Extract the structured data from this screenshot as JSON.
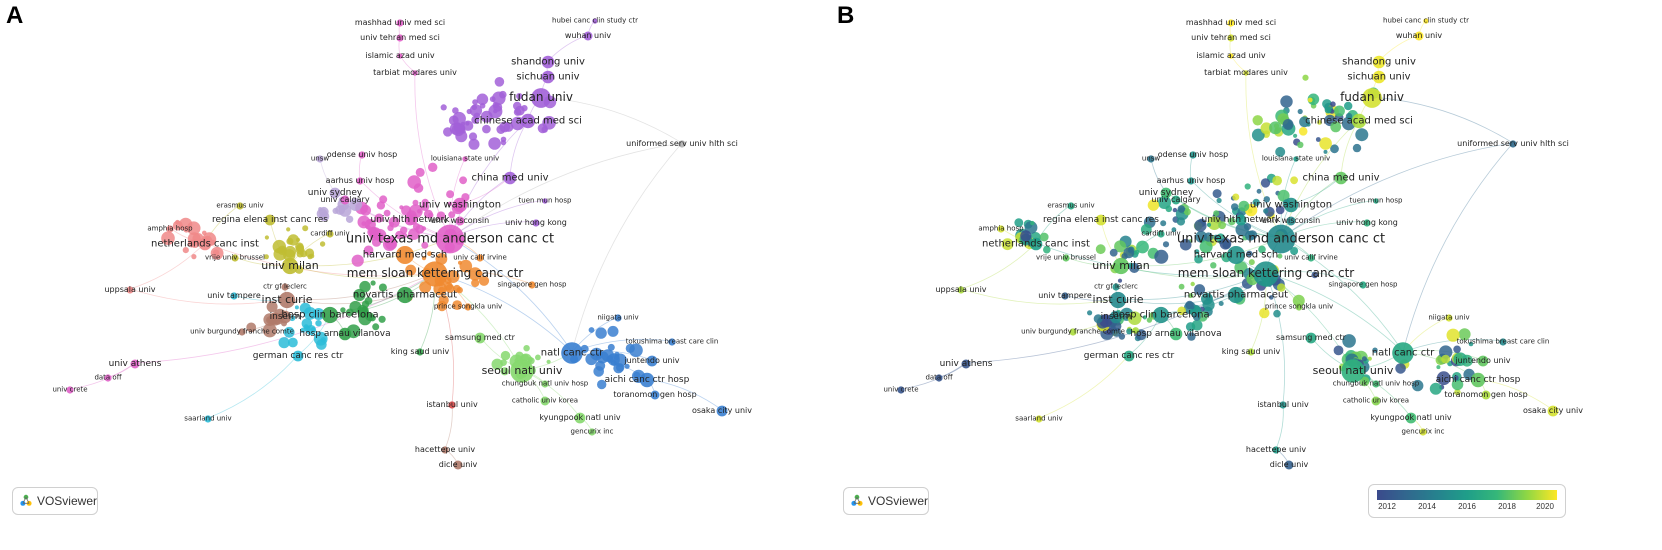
{
  "panels": [
    {
      "letter": "A",
      "mode": "cluster"
    },
    {
      "letter": "B",
      "mode": "overlay"
    }
  ],
  "logo": {
    "text": "VOSviewer"
  },
  "legend": {
    "ticks": [
      "2012",
      "2014",
      "2016",
      "2018",
      "2020"
    ],
    "min_year": 2012,
    "max_year": 2020
  },
  "colors": {
    "purple": "#a260d8",
    "pink": "#e060c8",
    "olive": "#bfbd32",
    "orange": "#f08a30",
    "green": "#33a04a",
    "cyan": "#2cbcd8",
    "blue": "#3a7fd0",
    "lightgreen": "#86d86e",
    "salmon": "#f08888",
    "lilac": "#b9a6d8",
    "gray": "#b0b0b0",
    "brown": "#b07a6a",
    "lightblue": "#a8d0ee",
    "red": "#d84848"
  },
  "nodes": [
    {
      "id": "mashhad",
      "label": "mashhad univ med sci",
      "cluster": "pink",
      "year": 2020.0,
      "size": 4,
      "font": 8
    },
    {
      "id": "tehran",
      "label": "univ tehran med sci",
      "cluster": "pink",
      "year": 2019.5,
      "size": 4,
      "font": 8
    },
    {
      "id": "islamic",
      "label": "islamic azad univ",
      "cluster": "pink",
      "year": 2020.0,
      "size": 3,
      "font": 8
    },
    {
      "id": "tarbiat",
      "label": "tarbiat modares univ",
      "cluster": "pink",
      "year": 2019.5,
      "size": 3,
      "font": 8
    },
    {
      "id": "hubei",
      "label": "hubei canc clin study ctr",
      "cluster": "purple",
      "year": 2020.0,
      "size": 3,
      "font": 7
    },
    {
      "id": "wuhan",
      "label": "wuhan univ",
      "cluster": "purple",
      "year": 2020.0,
      "size": 5,
      "font": 8
    },
    {
      "id": "shandong",
      "label": "shandong univ",
      "cluster": "purple",
      "year": 2019.8,
      "size": 7,
      "font": 10
    },
    {
      "id": "sichuan",
      "label": "sichuan univ",
      "cluster": "purple",
      "year": 2019.8,
      "size": 7,
      "font": 10
    },
    {
      "id": "fudan",
      "label": "fudan univ",
      "cluster": "purple",
      "year": 2019.5,
      "size": 11,
      "font": 12
    },
    {
      "id": "chinese",
      "label": "chinese acad med sci",
      "cluster": "purple",
      "year": 2019.0,
      "size": 8,
      "font": 10
    },
    {
      "id": "uniformed",
      "label": "uniformed serv univ hlth sci",
      "cluster": "gray",
      "year": 2013.5,
      "size": 4,
      "font": 8
    },
    {
      "id": "odense",
      "label": "odense univ hosp",
      "cluster": "pink",
      "year": 2015.5,
      "size": 4,
      "font": 8
    },
    {
      "id": "louisiana",
      "label": "louisiana state univ",
      "cluster": "pink",
      "year": 2016.0,
      "size": 3,
      "font": 7
    },
    {
      "id": "unsw",
      "label": "unsw",
      "cluster": "lilac",
      "year": 2014.0,
      "size": 4,
      "font": 7
    },
    {
      "id": "aarhus",
      "label": "aarhus univ hosp",
      "cluster": "pink",
      "year": 2015.5,
      "size": 4,
      "font": 8
    },
    {
      "id": "chinamed",
      "label": "china med univ",
      "cluster": "purple",
      "year": 2018.0,
      "size": 7,
      "font": 10
    },
    {
      "id": "sydney",
      "label": "univ sydney",
      "cluster": "lilac",
      "year": 2017.5,
      "size": 6,
      "font": 9
    },
    {
      "id": "calgary",
      "label": "univ calgary",
      "cluster": "pink",
      "year": 2016.5,
      "size": 5,
      "font": 8
    },
    {
      "id": "erasmus",
      "label": "erasmus univ",
      "cluster": "olive",
      "year": 2016.5,
      "size": 4,
      "font": 7
    },
    {
      "id": "tuenmun",
      "label": "tuen mun hosp",
      "cluster": "purple",
      "year": 2016.5,
      "size": 3,
      "font": 7
    },
    {
      "id": "washington",
      "label": "univ washington",
      "cluster": "pink",
      "year": 2015.5,
      "size": 8,
      "font": 10
    },
    {
      "id": "amphia",
      "label": "amphia hosp",
      "cluster": "salmon",
      "year": 2019.5,
      "size": 4,
      "font": 7
    },
    {
      "id": "regina",
      "label": "regina elena inst canc res",
      "cluster": "olive",
      "year": 2019.5,
      "size": 6,
      "font": 9
    },
    {
      "id": "hlth",
      "label": "univ hlth network",
      "cluster": "pink",
      "year": 2016.0,
      "size": 6,
      "font": 9
    },
    {
      "id": "wisconsin",
      "label": "univ wisconsin",
      "cluster": "pink",
      "year": 2015.0,
      "size": 5,
      "font": 8
    },
    {
      "id": "hongkong",
      "label": "univ hong kong",
      "cluster": "purple",
      "year": 2017.0,
      "size": 4,
      "font": 8
    },
    {
      "id": "netherlands",
      "label": "netherlands canc inst",
      "cluster": "salmon",
      "year": 2016.0,
      "size": 7,
      "font": 10
    },
    {
      "id": "cardiff",
      "label": "cardiff univ",
      "cluster": "olive",
      "year": 2016.5,
      "size": 4,
      "font": 7
    },
    {
      "id": "mdanderson",
      "label": "univ texas md anderson canc ct",
      "cluster": "pink",
      "year": 2015.0,
      "size": 16,
      "font": 13
    },
    {
      "id": "harvard",
      "label": "harvard med sch",
      "cluster": "orange",
      "year": 2015.5,
      "size": 10,
      "font": 10
    },
    {
      "id": "vrije",
      "label": "vrije univ brussel",
      "cluster": "olive",
      "year": 2018.0,
      "size": 4,
      "font": 7
    },
    {
      "id": "calif",
      "label": "univ calif irvine",
      "cluster": "orange",
      "year": 2017.0,
      "size": 4,
      "font": 7
    },
    {
      "id": "milan",
      "label": "univ milan",
      "cluster": "olive",
      "year": 2018.0,
      "size": 9,
      "font": 11
    },
    {
      "id": "mskcc",
      "label": "mem sloan kettering canc ctr",
      "cluster": "orange",
      "year": 2015.5,
      "size": 14,
      "font": 12
    },
    {
      "id": "uppsala",
      "label": "uppsala univ",
      "cluster": "salmon",
      "year": 2019.0,
      "size": 4,
      "font": 8
    },
    {
      "id": "singapore",
      "label": "singapore gen hosp",
      "cluster": "orange",
      "year": 2016.5,
      "size": 4,
      "font": 7
    },
    {
      "id": "tampere",
      "label": "univ tampere",
      "cluster": "cyan",
      "year": 2013.0,
      "size": 4,
      "font": 8
    },
    {
      "id": "crf",
      "label": "ctr gf leclerc",
      "cluster": "brown",
      "year": 2015.5,
      "size": 4,
      "font": 7
    },
    {
      "id": "curie",
      "label": "inst curie",
      "cluster": "brown",
      "year": 2015.0,
      "size": 9,
      "font": 11
    },
    {
      "id": "novartis",
      "label": "novartis pharmaceut",
      "cluster": "green",
      "year": 2015.5,
      "size": 9,
      "font": 10
    },
    {
      "id": "songkla",
      "label": "prince songkla univ",
      "cluster": "orange",
      "year": 2018.5,
      "size": 4,
      "font": 7
    },
    {
      "id": "inserm",
      "label": "inserm",
      "cluster": "brown",
      "year": 2015.0,
      "size": 7,
      "font": 9
    },
    {
      "id": "barcelona",
      "label": "hosp clin barcelona",
      "cluster": "green",
      "year": 2015.5,
      "size": 9,
      "font": 10
    },
    {
      "id": "niigata",
      "label": "niigata univ",
      "cluster": "blue",
      "year": 2019.5,
      "size": 4,
      "font": 7
    },
    {
      "id": "burgundy",
      "label": "univ burgundy franche comte",
      "cluster": "brown",
      "year": 2019.0,
      "size": 4,
      "font": 7
    },
    {
      "id": "vilanova",
      "label": "hosp arnau vilanova",
      "cluster": "green",
      "year": 2017.5,
      "size": 7,
      "font": 9
    },
    {
      "id": "samsung",
      "label": "samsung med ctr",
      "cluster": "lightgreen",
      "year": 2016.5,
      "size": 6,
      "font": 8
    },
    {
      "id": "tokushima",
      "label": "tokushima breast care clin",
      "cluster": "blue",
      "year": 2015.0,
      "size": 4,
      "font": 7
    },
    {
      "id": "ncc",
      "label": "natl canc ctr",
      "cluster": "blue",
      "year": 2016.5,
      "size": 12,
      "font": 10
    },
    {
      "id": "german",
      "label": "german canc res ctr",
      "cluster": "cyan",
      "year": 2016.5,
      "size": 6,
      "font": 9
    },
    {
      "id": "kingsaud",
      "label": "king saud univ",
      "cluster": "green",
      "year": 2019.0,
      "size": 4,
      "font": 8
    },
    {
      "id": "juntendo",
      "label": "juntendo univ",
      "cluster": "blue",
      "year": 2018.0,
      "size": 6,
      "font": 8
    },
    {
      "id": "athens",
      "label": "univ athens",
      "cluster": "pink",
      "year": 2012.5,
      "size": 5,
      "font": 9
    },
    {
      "id": "seoul",
      "label": "seoul natl univ",
      "cluster": "lightgreen",
      "year": 2017.0,
      "size": 13,
      "font": 11
    },
    {
      "id": "aichi",
      "label": "aichi canc ctr hosp",
      "cluster": "blue",
      "year": 2018.0,
      "size": 8,
      "font": 9
    },
    {
      "id": "chungbuk",
      "label": "chungbuk natl univ hosp",
      "cluster": "lightgreen",
      "year": 2017.5,
      "size": 4,
      "font": 7
    },
    {
      "id": "dataoff",
      "label": "data off",
      "cluster": "pink",
      "year": 2012.5,
      "size": 4,
      "font": 7
    },
    {
      "id": "toranomon",
      "label": "toranomon gen hosp",
      "cluster": "blue",
      "year": 2019.0,
      "size": 5,
      "font": 8
    },
    {
      "id": "crete",
      "label": "univ crete",
      "cluster": "pink",
      "year": 2012.5,
      "size": 4,
      "font": 7
    },
    {
      "id": "istanbul",
      "label": "istanbul univ",
      "cluster": "red",
      "year": 2015.5,
      "size": 4,
      "font": 8
    },
    {
      "id": "catholic",
      "label": "catholic univ korea",
      "cluster": "lightgreen",
      "year": 2018.5,
      "size": 5,
      "font": 7
    },
    {
      "id": "kyungpook",
      "label": "kyungpook natl univ",
      "cluster": "lightgreen",
      "year": 2017.5,
      "size": 6,
      "font": 8
    },
    {
      "id": "osaka",
      "label": "osaka city univ",
      "cluster": "blue",
      "year": 2019.5,
      "size": 6,
      "font": 8
    },
    {
      "id": "gencurix",
      "label": "gencurix inc",
      "cluster": "lightgreen",
      "year": 2019.5,
      "size": 4,
      "font": 7
    },
    {
      "id": "saarland",
      "label": "saarland univ",
      "cluster": "cyan",
      "year": 2019.5,
      "size": 4,
      "font": 7
    },
    {
      "id": "hacettepe",
      "label": "hacettepe univ",
      "cluster": "brown",
      "year": 2016.0,
      "size": 4,
      "font": 8
    },
    {
      "id": "dicle",
      "label": "dicle univ",
      "cluster": "brown",
      "year": 2013.0,
      "size": 5,
      "font": 8
    }
  ]
}
